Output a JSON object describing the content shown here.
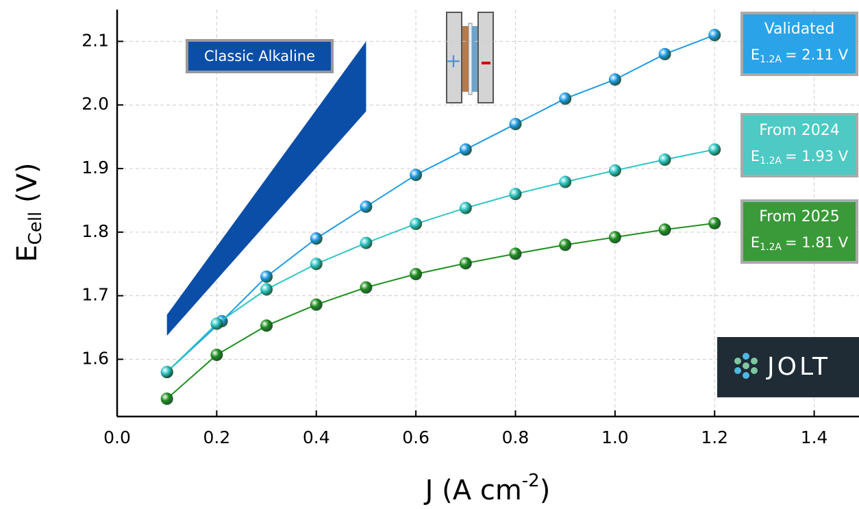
{
  "chart_data": {
    "type": "line",
    "x_label": {
      "text": "J (A cm",
      "superscript": "-2",
      "suffix": ")"
    },
    "y_label": {
      "text": "E",
      "subscript": "Cell",
      "suffix": " (V)"
    },
    "xlim": [
      0,
      1.49
    ],
    "ylim": [
      1.51,
      2.15
    ],
    "xticks": [
      {
        "value": 0,
        "label": "0.0"
      },
      0.2,
      0.4,
      0.6,
      0.8,
      {
        "value": 1,
        "label": "1.0"
      },
      1.2,
      1.4
    ],
    "yticks": [
      1.6,
      1.7,
      1.8,
      1.9,
      {
        "value": 2,
        "label": "2.0"
      },
      2.1
    ],
    "grid": true,
    "band": {
      "name": "Classic Alkaline",
      "color": "#0a4ea8",
      "x": [
        0.1,
        0.5
      ],
      "upper": [
        1.67,
        2.1
      ],
      "lower": [
        1.637,
        1.99
      ]
    },
    "series": [
      {
        "name": "Validated",
        "color": "#1e9be8",
        "box_color": "#2aa3e8",
        "annotation": {
          "symbol": "E",
          "subscript": "1.2A",
          "text": "= 2.11 V"
        },
        "x": [
          0.1,
          0.21,
          0.3,
          0.4,
          0.5,
          0.6,
          0.7,
          0.8,
          0.9,
          1.0,
          1.1,
          1.2
        ],
        "values": [
          1.58,
          1.66,
          1.73,
          1.79,
          1.84,
          1.89,
          1.93,
          1.97,
          2.01,
          2.04,
          2.08,
          2.11
        ]
      },
      {
        "name": "From 2024",
        "color": "#2cc5c5",
        "box_color": "#4ec9c4",
        "annotation": {
          "symbol": "E",
          "subscript": "1.2A",
          "text": "= 1.93 V"
        },
        "x": [
          0.1,
          0.2,
          0.3,
          0.4,
          0.5,
          0.6,
          0.7,
          0.8,
          0.9,
          1.0,
          1.1,
          1.2
        ],
        "values": [
          1.58,
          1.656,
          1.71,
          1.75,
          1.783,
          1.813,
          1.838,
          1.86,
          1.879,
          1.897,
          1.914,
          1.93
        ]
      },
      {
        "name": "From 2025",
        "color": "#1f8f1f",
        "box_color": "#3a9a3a",
        "annotation": {
          "symbol": "E",
          "subscript": "1.2A",
          "text": "= 1.81 V"
        },
        "x": [
          0.1,
          0.2,
          0.3,
          0.4,
          0.5,
          0.6,
          0.7,
          0.8,
          0.9,
          1.0,
          1.1,
          1.2
        ],
        "values": [
          1.538,
          1.607,
          1.653,
          1.686,
          1.713,
          1.734,
          1.751,
          1.766,
          1.78,
          1.792,
          1.804,
          1.814
        ]
      }
    ],
    "logo": "JOLT"
  }
}
